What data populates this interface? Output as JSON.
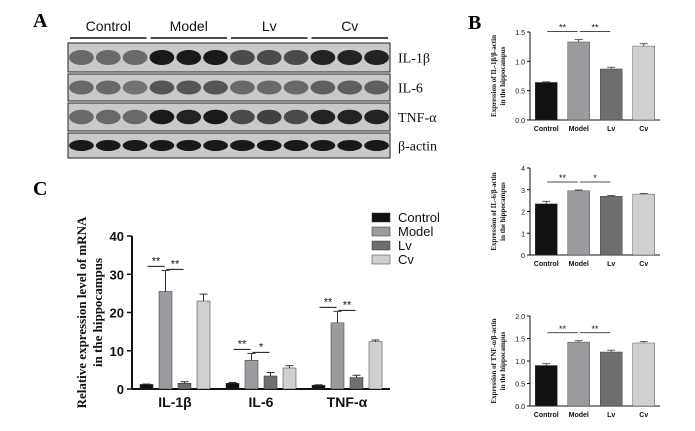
{
  "panels": {
    "A": "A",
    "B": "B",
    "C": "C"
  },
  "blot": {
    "groups": [
      "Control",
      "Model",
      "Lv",
      "Cv"
    ],
    "rows": [
      {
        "label": "IL-1β",
        "intensity": [
          0.55,
          0.55,
          0.55,
          0.95,
          0.95,
          0.95,
          0.7,
          0.7,
          0.7,
          0.9,
          0.9,
          0.9
        ]
      },
      {
        "label": "IL-6",
        "intensity": [
          0.55,
          0.55,
          0.5,
          0.65,
          0.65,
          0.65,
          0.55,
          0.55,
          0.55,
          0.6,
          0.6,
          0.6
        ]
      },
      {
        "label": "TNF-α",
        "intensity": [
          0.55,
          0.55,
          0.55,
          0.95,
          0.9,
          0.95,
          0.7,
          0.75,
          0.7,
          0.9,
          0.9,
          0.9
        ]
      },
      {
        "label": "β-actin",
        "intensity": [
          0.95,
          0.95,
          0.95,
          0.95,
          0.95,
          0.95,
          0.95,
          0.95,
          0.95,
          0.95,
          0.95,
          0.95
        ]
      }
    ]
  },
  "chart_data": [
    {
      "panel": "C",
      "type": "bar",
      "categories": [
        "IL-1β",
        "IL-6",
        "TNF-α"
      ],
      "series": [
        {
          "name": "Control",
          "values": [
            1.2,
            1.5,
            1.0
          ],
          "errors": [
            0.1,
            0.2,
            0.1
          ],
          "color": "#111111"
        },
        {
          "name": "Model",
          "values": [
            25.5,
            7.5,
            17.3
          ],
          "errors": [
            5.5,
            1.8,
            3.0
          ],
          "color": "#9b9b9f"
        },
        {
          "name": "Lv",
          "values": [
            1.5,
            3.4,
            3.0
          ],
          "errors": [
            0.4,
            0.9,
            0.6
          ],
          "color": "#6e6e6e"
        },
        {
          "name": "Cv",
          "values": [
            23.0,
            5.5,
            12.4
          ],
          "errors": [
            1.8,
            0.6,
            0.4
          ],
          "color": "#d0d0d0"
        }
      ],
      "significance": [
        {
          "category": 0,
          "from": 0,
          "to": 1,
          "label": "**"
        },
        {
          "category": 0,
          "from": 1,
          "to": 2,
          "label": "**"
        },
        {
          "category": 1,
          "from": 0,
          "to": 1,
          "label": "**"
        },
        {
          "category": 1,
          "from": 1,
          "to": 2,
          "label": "*"
        },
        {
          "category": 2,
          "from": 0,
          "to": 1,
          "label": "**"
        },
        {
          "category": 2,
          "from": 1,
          "to": 2,
          "label": "**"
        }
      ],
      "ylabel": "Relative expression level of mRNA in the hippocampus",
      "ylim": [
        0,
        40
      ],
      "yticks": [
        0,
        10,
        20,
        30,
        40
      ],
      "legend": "top-right"
    },
    {
      "panel": "B",
      "type": "bar",
      "categories": [
        "Control",
        "Model",
        "Lv",
        "Cv"
      ],
      "values": [
        0.64,
        1.33,
        0.87,
        1.26
      ],
      "errors": [
        0.01,
        0.04,
        0.03,
        0.04
      ],
      "colors": [
        "#111111",
        "#9b9b9f",
        "#6e6e6e",
        "#d0d0d0"
      ],
      "significance": [
        {
          "from": 0,
          "to": 1,
          "label": "**"
        },
        {
          "from": 1,
          "to": 2,
          "label": "**"
        }
      ],
      "ylabel": "Expression of IL-1β/β-actin in the hippocampus",
      "ylim": [
        0,
        1.5
      ],
      "yticks": [
        0.0,
        0.5,
        1.0,
        1.5
      ]
    },
    {
      "panel": "B",
      "type": "bar",
      "categories": [
        "Control",
        "Model",
        "Lv",
        "Cv"
      ],
      "values": [
        2.35,
        2.95,
        2.7,
        2.8
      ],
      "errors": [
        0.12,
        0.04,
        0.04,
        0.03
      ],
      "colors": [
        "#111111",
        "#9b9b9f",
        "#6e6e6e",
        "#d0d0d0"
      ],
      "significance": [
        {
          "from": 0,
          "to": 1,
          "label": "**"
        },
        {
          "from": 1,
          "to": 2,
          "label": "*"
        }
      ],
      "ylabel": "Expression of IL-6/β-actin in the hippocampus",
      "ylim": [
        0,
        4
      ],
      "yticks": [
        0,
        1,
        2,
        3,
        4
      ]
    },
    {
      "panel": "B",
      "type": "bar",
      "categories": [
        "Control",
        "Model",
        "Lv",
        "Cv"
      ],
      "values": [
        0.9,
        1.42,
        1.2,
        1.4
      ],
      "errors": [
        0.04,
        0.03,
        0.04,
        0.03
      ],
      "colors": [
        "#111111",
        "#9b9b9f",
        "#6e6e6e",
        "#d0d0d0"
      ],
      "significance": [
        {
          "from": 0,
          "to": 1,
          "label": "**"
        },
        {
          "from": 1,
          "to": 2,
          "label": "**"
        }
      ],
      "ylabel": "Expression of TNF-α/β-actin in the hippocampus",
      "ylim": [
        0,
        2.0
      ],
      "yticks": [
        0.0,
        0.5,
        1.0,
        1.5,
        2.0
      ]
    }
  ]
}
